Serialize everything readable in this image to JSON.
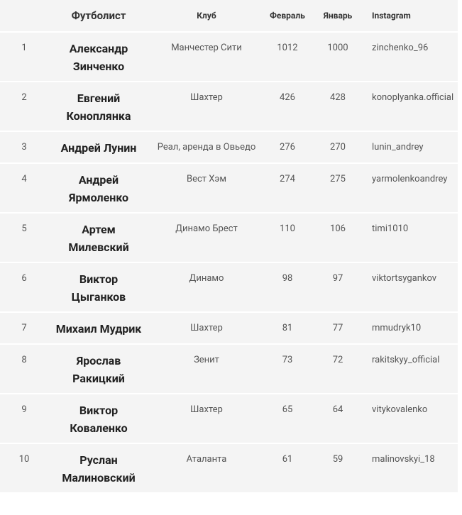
{
  "table": {
    "header": [
      "",
      "Футболист",
      "Клуб",
      "Февраль",
      "Январь",
      "Instagram"
    ],
    "rows": [
      [
        "1",
        "Александр Зинченко",
        "Манчестер Сити",
        "1012",
        "1000",
        "zinchenko_96"
      ],
      [
        "2",
        "Евгений Коноплянка",
        "Шахтер",
        "426",
        "428",
        "konoplyanka.official"
      ],
      [
        "3",
        "Андрей Лунин",
        "Реал, аренда в Овьедо",
        "276",
        "270",
        "lunin_andrey"
      ],
      [
        "4",
        "Андрей Ярмоленко",
        "Вест Хэм",
        "274",
        "275",
        "yarmolenkoandrey"
      ],
      [
        "5",
        "Артем Милевский",
        "Динамо Брест",
        "110",
        "106",
        "timi1010"
      ],
      [
        "6",
        "Виктор Цыганков",
        "Динамо",
        "98",
        "97",
        "viktortsygankov"
      ],
      [
        "7",
        "Михаил Мудрик",
        "Шахтер",
        "81",
        "77",
        "mmudryk10"
      ],
      [
        "8",
        "Ярослав Ракицкий",
        "Зенит",
        "73",
        "72",
        "rakitskyy_official"
      ],
      [
        "9",
        "Виктор Коваленко",
        "Шахтер",
        "65",
        "64",
        "vitykovalenko"
      ],
      [
        "10",
        "Руслан Малиновский",
        "Аталанта",
        "61",
        "59",
        "malinovskyi_18"
      ]
    ]
  }
}
